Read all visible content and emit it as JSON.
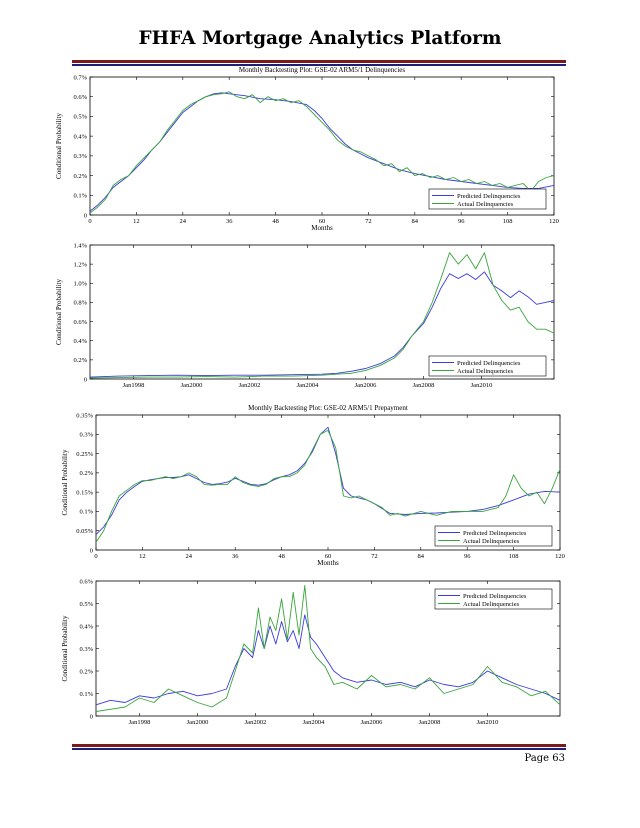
{
  "page": {
    "title": "FHFA Mortgage Analytics Platform",
    "page_number": "Page 63",
    "rule_colors": [
      "#7a1b1b",
      "#1f1f7a"
    ]
  },
  "chart_data": [
    {
      "type": "line",
      "title": "Monthly Backtesting Plot:  GSE-02 ARM5/1 Delinquencies",
      "xlabel": "Months",
      "ylabel": "Conditional Probability",
      "xlim": [
        0,
        120
      ],
      "ylim": [
        0,
        0.7
      ],
      "xticks": [
        0,
        12,
        24,
        36,
        48,
        60,
        72,
        84,
        96,
        108,
        120
      ],
      "xtick_labels": [
        "0",
        "12",
        "24",
        "36",
        "48",
        "60",
        "72",
        "84",
        "96",
        "108",
        "120"
      ],
      "yticks": [
        0,
        0.1,
        0.2,
        0.3,
        0.4,
        0.5,
        0.6,
        0.7
      ],
      "ytick_labels": [
        "0",
        "0.1%",
        "0.2%",
        "0.3%",
        "0.4%",
        "0.5%",
        "0.6%",
        "0.7%"
      ],
      "grid": false,
      "legend": "bottom-right",
      "series": [
        {
          "name": "Predicted Delinquencies",
          "color": "#3b3be0",
          "x": [
            0,
            2,
            4,
            6,
            8,
            10,
            12,
            14,
            16,
            18,
            20,
            22,
            24,
            26,
            28,
            30,
            32,
            34,
            36,
            40,
            44,
            48,
            52,
            56,
            58,
            60,
            62,
            64,
            66,
            68,
            70,
            72,
            76,
            80,
            84,
            88,
            92,
            96,
            100,
            104,
            108,
            112,
            116,
            120
          ],
          "values": [
            0.02,
            0.05,
            0.09,
            0.14,
            0.17,
            0.2,
            0.24,
            0.28,
            0.33,
            0.37,
            0.42,
            0.47,
            0.52,
            0.55,
            0.58,
            0.6,
            0.615,
            0.62,
            0.615,
            0.605,
            0.59,
            0.585,
            0.575,
            0.56,
            0.53,
            0.49,
            0.44,
            0.4,
            0.36,
            0.33,
            0.31,
            0.29,
            0.26,
            0.23,
            0.21,
            0.195,
            0.18,
            0.17,
            0.16,
            0.15,
            0.14,
            0.135,
            0.135,
            0.15
          ]
        },
        {
          "name": "Actual Delinquencies",
          "color": "#3aa53a",
          "x": [
            0,
            2,
            4,
            6,
            8,
            10,
            12,
            14,
            16,
            18,
            20,
            22,
            24,
            26,
            28,
            30,
            32,
            34,
            36,
            38,
            40,
            42,
            44,
            46,
            48,
            50,
            52,
            54,
            56,
            58,
            60,
            62,
            64,
            66,
            68,
            70,
            72,
            74,
            76,
            78,
            80,
            82,
            84,
            86,
            88,
            90,
            92,
            94,
            96,
            98,
            100,
            102,
            104,
            106,
            108,
            110,
            112,
            114,
            116,
            118,
            120
          ],
          "values": [
            0.01,
            0.04,
            0.08,
            0.15,
            0.18,
            0.2,
            0.25,
            0.29,
            0.33,
            0.37,
            0.43,
            0.48,
            0.53,
            0.56,
            0.58,
            0.6,
            0.61,
            0.615,
            0.625,
            0.6,
            0.59,
            0.61,
            0.57,
            0.6,
            0.58,
            0.59,
            0.57,
            0.58,
            0.55,
            0.51,
            0.47,
            0.43,
            0.38,
            0.35,
            0.33,
            0.32,
            0.3,
            0.28,
            0.25,
            0.26,
            0.22,
            0.24,
            0.2,
            0.21,
            0.19,
            0.2,
            0.18,
            0.19,
            0.17,
            0.18,
            0.16,
            0.17,
            0.15,
            0.16,
            0.14,
            0.15,
            0.16,
            0.12,
            0.17,
            0.19,
            0.2
          ]
        }
      ]
    },
    {
      "type": "line",
      "title": "",
      "xlabel": "",
      "ylabel": "Conditional Probability",
      "xlim": [
        1996.5,
        2012.5
      ],
      "ylim": [
        0,
        1.4
      ],
      "xticks": [
        1998,
        2000,
        2002,
        2004,
        2006,
        2008,
        2010
      ],
      "xtick_labels": [
        "Jan1998",
        "Jan2000",
        "Jan2002",
        "Jan2004",
        "Jan2006",
        "Jan2008",
        "Jan2010"
      ],
      "yticks": [
        0,
        0.2,
        0.4,
        0.6,
        0.8,
        1.0,
        1.2,
        1.4
      ],
      "ytick_labels": [
        "0",
        "0.2%",
        "0.4%",
        "0.6%",
        "0.8%",
        "1.0%",
        "1.2%",
        "1.4%"
      ],
      "grid": false,
      "legend": "bottom-right",
      "series": [
        {
          "name": "Predicted Delinquencies",
          "color": "#3b3be0",
          "x": [
            1996.5,
            1997.5,
            1998.5,
            1999.5,
            2000.5,
            2001.5,
            2002.5,
            2003.5,
            2004.5,
            2005.0,
            2005.5,
            2006.0,
            2006.5,
            2007.0,
            2007.3,
            2007.6,
            2008.0,
            2008.3,
            2008.6,
            2008.9,
            2009.2,
            2009.5,
            2009.8,
            2010.1,
            2010.4,
            2010.7,
            2011.0,
            2011.3,
            2011.6,
            2011.9,
            2012.2,
            2012.5
          ],
          "values": [
            0.02,
            0.03,
            0.035,
            0.04,
            0.035,
            0.04,
            0.04,
            0.045,
            0.05,
            0.06,
            0.08,
            0.11,
            0.16,
            0.24,
            0.33,
            0.45,
            0.58,
            0.75,
            0.95,
            1.1,
            1.05,
            1.1,
            1.04,
            1.12,
            0.98,
            0.92,
            0.85,
            0.92,
            0.86,
            0.78,
            0.8,
            0.82
          ]
        },
        {
          "name": "Actual Delinquencies",
          "color": "#3aa53a",
          "x": [
            1996.5,
            1997.5,
            1998.5,
            1999.5,
            2000.5,
            2001.5,
            2002.5,
            2003.5,
            2004.5,
            2005.0,
            2005.5,
            2006.0,
            2006.5,
            2007.0,
            2007.3,
            2007.6,
            2008.0,
            2008.3,
            2008.6,
            2008.9,
            2009.2,
            2009.5,
            2009.8,
            2010.1,
            2010.4,
            2010.7,
            2011.0,
            2011.3,
            2011.6,
            2011.9,
            2012.2,
            2012.5
          ],
          "values": [
            0.01,
            0.015,
            0.02,
            0.02,
            0.025,
            0.02,
            0.03,
            0.03,
            0.04,
            0.05,
            0.06,
            0.09,
            0.14,
            0.22,
            0.31,
            0.45,
            0.6,
            0.8,
            1.05,
            1.32,
            1.2,
            1.3,
            1.15,
            1.32,
            0.98,
            0.82,
            0.72,
            0.75,
            0.6,
            0.52,
            0.52,
            0.48
          ]
        }
      ]
    },
    {
      "type": "line",
      "title": "Monthly Backtesting Plot:  GSE-02 ARM5/1 Prepayment",
      "xlabel": "Months",
      "ylabel": "Conditional Probability",
      "xlim": [
        0,
        120
      ],
      "ylim": [
        0,
        0.35
      ],
      "xticks": [
        0,
        12,
        24,
        36,
        48,
        60,
        72,
        84,
        96,
        108,
        120
      ],
      "xtick_labels": [
        "0",
        "12",
        "24",
        "36",
        "48",
        "60",
        "72",
        "84",
        "96",
        "108",
        "120"
      ],
      "yticks": [
        0,
        0.05,
        0.1,
        0.15,
        0.2,
        0.25,
        0.3,
        0.35
      ],
      "ytick_labels": [
        "0",
        "0.05%",
        "0.1%",
        "0.15%",
        "0.2%",
        "0.25%",
        "0.3%",
        "0.35%"
      ],
      "grid": false,
      "legend": "bottom-right",
      "series": [
        {
          "name": "Predicted Delinquencies",
          "color": "#3b3be0",
          "x": [
            0,
            2,
            4,
            6,
            8,
            10,
            12,
            14,
            16,
            18,
            20,
            22,
            24,
            26,
            28,
            30,
            32,
            34,
            36,
            38,
            40,
            42,
            44,
            46,
            48,
            50,
            52,
            54,
            56,
            58,
            60,
            62,
            64,
            66,
            68,
            70,
            72,
            76,
            80,
            84,
            88,
            92,
            96,
            100,
            104,
            108,
            112,
            116,
            120
          ],
          "values": [
            0.04,
            0.06,
            0.09,
            0.13,
            0.15,
            0.165,
            0.178,
            0.182,
            0.185,
            0.188,
            0.188,
            0.19,
            0.195,
            0.185,
            0.175,
            0.17,
            0.172,
            0.176,
            0.186,
            0.178,
            0.17,
            0.168,
            0.172,
            0.182,
            0.19,
            0.195,
            0.205,
            0.225,
            0.255,
            0.3,
            0.318,
            0.25,
            0.16,
            0.14,
            0.135,
            0.13,
            0.12,
            0.095,
            0.092,
            0.095,
            0.096,
            0.098,
            0.1,
            0.105,
            0.115,
            0.13,
            0.145,
            0.152,
            0.15
          ]
        },
        {
          "name": "Actual Delinquencies",
          "color": "#3aa53a",
          "x": [
            0,
            2,
            4,
            6,
            8,
            10,
            12,
            14,
            16,
            18,
            20,
            22,
            24,
            26,
            28,
            30,
            32,
            34,
            36,
            38,
            40,
            42,
            44,
            46,
            48,
            50,
            52,
            54,
            56,
            58,
            60,
            62,
            64,
            66,
            68,
            70,
            72,
            74,
            76,
            78,
            80,
            84,
            88,
            92,
            96,
            100,
            104,
            106,
            108,
            110,
            112,
            114,
            116,
            118,
            120
          ],
          "values": [
            0.02,
            0.05,
            0.1,
            0.14,
            0.155,
            0.17,
            0.18,
            0.18,
            0.185,
            0.19,
            0.185,
            0.19,
            0.2,
            0.19,
            0.17,
            0.168,
            0.17,
            0.17,
            0.19,
            0.175,
            0.168,
            0.165,
            0.17,
            0.185,
            0.19,
            0.19,
            0.2,
            0.22,
            0.26,
            0.3,
            0.31,
            0.265,
            0.14,
            0.135,
            0.14,
            0.13,
            0.12,
            0.11,
            0.09,
            0.095,
            0.088,
            0.1,
            0.09,
            0.1,
            0.1,
            0.1,
            0.11,
            0.14,
            0.195,
            0.16,
            0.14,
            0.15,
            0.12,
            0.16,
            0.21
          ]
        }
      ]
    },
    {
      "type": "line",
      "title": "",
      "xlabel": "",
      "ylabel": "Conditional Probability",
      "xlim": [
        1996.5,
        2012.5
      ],
      "ylim": [
        0,
        0.6
      ],
      "xticks": [
        1998,
        2000,
        2002,
        2004,
        2006,
        2008,
        2010
      ],
      "xtick_labels": [
        "Jan1998",
        "Jan2000",
        "Jan2002",
        "Jan2004",
        "Jan2006",
        "Jan2008",
        "Jan2010"
      ],
      "yticks": [
        0,
        0.1,
        0.2,
        0.3,
        0.4,
        0.5,
        0.6
      ],
      "ytick_labels": [
        "0",
        "0.1%",
        "0.2%",
        "0.3%",
        "0.4%",
        "0.5%",
        "0.6%"
      ],
      "grid": false,
      "legend": "top-right",
      "series": [
        {
          "name": "Predicted Delinquencies",
          "color": "#3b3be0",
          "x": [
            1996.5,
            1997.0,
            1997.5,
            1998.0,
            1998.5,
            1999.0,
            1999.5,
            2000.0,
            2000.5,
            2001.0,
            2001.3,
            2001.6,
            2001.9,
            2002.1,
            2002.3,
            2002.5,
            2002.7,
            2002.9,
            2003.1,
            2003.3,
            2003.5,
            2003.7,
            2003.9,
            2004.1,
            2004.4,
            2004.7,
            2005.0,
            2005.5,
            2006.0,
            2006.5,
            2007.0,
            2007.5,
            2008.0,
            2008.5,
            2009.0,
            2009.5,
            2010.0,
            2010.5,
            2011.0,
            2011.5,
            2012.0,
            2012.5
          ],
          "values": [
            0.05,
            0.07,
            0.06,
            0.09,
            0.08,
            0.1,
            0.11,
            0.09,
            0.1,
            0.12,
            0.22,
            0.3,
            0.26,
            0.38,
            0.3,
            0.4,
            0.32,
            0.42,
            0.33,
            0.38,
            0.3,
            0.45,
            0.35,
            0.32,
            0.26,
            0.2,
            0.17,
            0.15,
            0.16,
            0.14,
            0.15,
            0.13,
            0.16,
            0.14,
            0.13,
            0.15,
            0.2,
            0.17,
            0.14,
            0.12,
            0.1,
            0.07
          ]
        },
        {
          "name": "Actual Delinquencies",
          "color": "#3aa53a",
          "x": [
            1996.5,
            1997.0,
            1997.5,
            1998.0,
            1998.5,
            1999.0,
            1999.5,
            2000.0,
            2000.5,
            2001.0,
            2001.3,
            2001.6,
            2001.9,
            2002.1,
            2002.3,
            2002.5,
            2002.7,
            2002.9,
            2003.1,
            2003.3,
            2003.5,
            2003.7,
            2003.9,
            2004.1,
            2004.4,
            2004.7,
            2005.0,
            2005.5,
            2006.0,
            2006.5,
            2007.0,
            2007.5,
            2008.0,
            2008.5,
            2009.0,
            2009.5,
            2010.0,
            2010.5,
            2011.0,
            2011.5,
            2012.0,
            2012.5
          ],
          "values": [
            0.02,
            0.03,
            0.04,
            0.08,
            0.06,
            0.12,
            0.09,
            0.06,
            0.04,
            0.08,
            0.2,
            0.32,
            0.28,
            0.48,
            0.3,
            0.44,
            0.38,
            0.52,
            0.34,
            0.55,
            0.36,
            0.58,
            0.3,
            0.26,
            0.22,
            0.14,
            0.15,
            0.12,
            0.18,
            0.13,
            0.14,
            0.12,
            0.17,
            0.1,
            0.12,
            0.14,
            0.22,
            0.15,
            0.13,
            0.09,
            0.11,
            0.05
          ]
        }
      ]
    }
  ]
}
